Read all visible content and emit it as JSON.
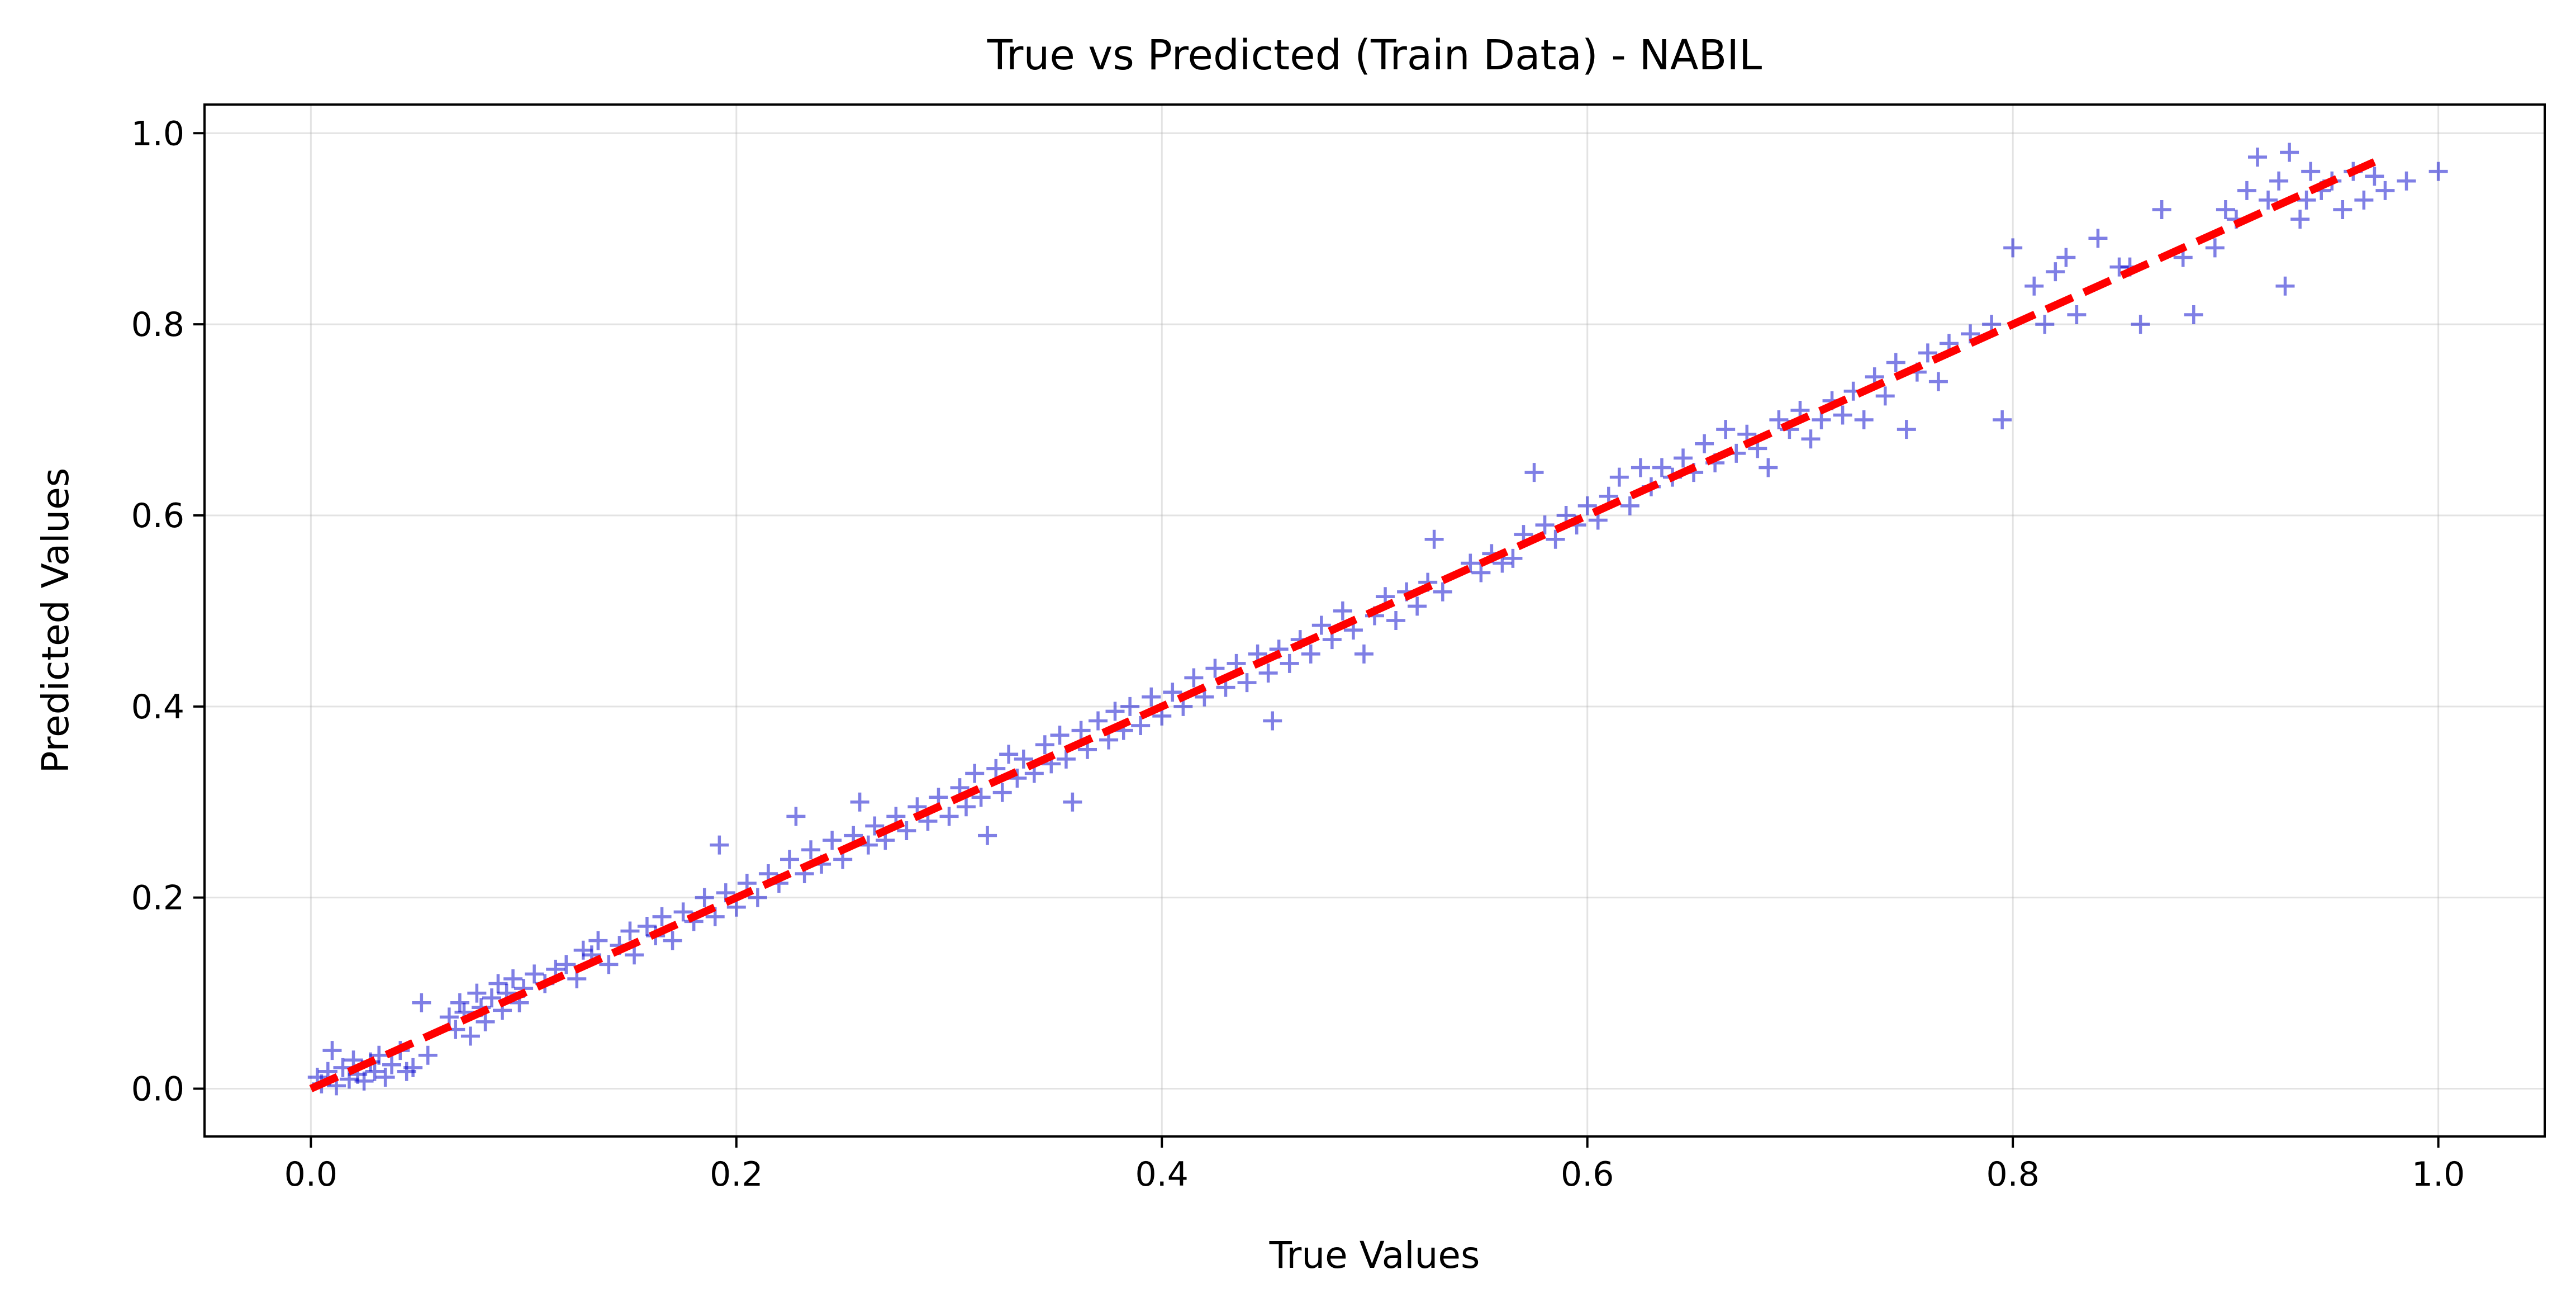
{
  "chart_data": {
    "type": "scatter",
    "title": "True vs Predicted (Train Data) - NABIL",
    "xlabel": "True Values",
    "ylabel": "Predicted Values",
    "xlim": [
      -0.05,
      1.05
    ],
    "ylim": [
      -0.05,
      1.03
    ],
    "x_ticks": [
      0.0,
      0.2,
      0.4,
      0.6,
      0.8,
      1.0
    ],
    "y_ticks": [
      0.0,
      0.2,
      0.4,
      0.6,
      0.8,
      1.0
    ],
    "x_tick_labels": [
      "0.0",
      "0.2",
      "0.4",
      "0.6",
      "0.8",
      "1.0"
    ],
    "y_tick_labels": [
      "0.0",
      "0.2",
      "0.4",
      "0.6",
      "0.8",
      "1.0"
    ],
    "grid": true,
    "marker": "+",
    "point_color": "#0000cc",
    "point_alpha": 0.5,
    "reference_line": {
      "x": [
        0.0,
        0.97
      ],
      "y": [
        0.0,
        0.97
      ],
      "color": "#ff0000",
      "style": "dashed"
    },
    "points": [
      [
        0.005,
        0.005
      ],
      [
        0.008,
        0.018
      ],
      [
        0.012,
        0.003
      ],
      [
        0.015,
        0.022
      ],
      [
        0.018,
        0.01
      ],
      [
        0.02,
        0.03
      ],
      [
        0.022,
        0.015
      ],
      [
        0.025,
        0.008
      ],
      [
        0.028,
        0.028
      ],
      [
        0.03,
        0.018
      ],
      [
        0.032,
        0.035
      ],
      [
        0.035,
        0.012
      ],
      [
        0.038,
        0.025
      ],
      [
        0.042,
        0.04
      ],
      [
        0.045,
        0.018
      ],
      [
        0.048,
        0.022
      ],
      [
        0.052,
        0.09
      ],
      [
        0.055,
        0.035
      ],
      [
        0.01,
        0.04
      ],
      [
        0.003,
        0.012
      ],
      [
        0.065,
        0.075
      ],
      [
        0.068,
        0.062
      ],
      [
        0.07,
        0.09
      ],
      [
        0.072,
        0.08
      ],
      [
        0.075,
        0.055
      ],
      [
        0.078,
        0.1
      ],
      [
        0.08,
        0.085
      ],
      [
        0.082,
        0.07
      ],
      [
        0.085,
        0.095
      ],
      [
        0.088,
        0.11
      ],
      [
        0.09,
        0.082
      ],
      [
        0.092,
        0.1
      ],
      [
        0.095,
        0.115
      ],
      [
        0.098,
        0.09
      ],
      [
        0.1,
        0.105
      ],
      [
        0.105,
        0.12
      ],
      [
        0.11,
        0.11
      ],
      [
        0.115,
        0.125
      ],
      [
        0.12,
        0.13
      ],
      [
        0.125,
        0.115
      ],
      [
        0.128,
        0.145
      ],
      [
        0.132,
        0.14
      ],
      [
        0.135,
        0.155
      ],
      [
        0.14,
        0.13
      ],
      [
        0.145,
        0.15
      ],
      [
        0.15,
        0.165
      ],
      [
        0.152,
        0.14
      ],
      [
        0.158,
        0.17
      ],
      [
        0.162,
        0.16
      ],
      [
        0.165,
        0.18
      ],
      [
        0.17,
        0.155
      ],
      [
        0.175,
        0.185
      ],
      [
        0.18,
        0.175
      ],
      [
        0.185,
        0.2
      ],
      [
        0.19,
        0.18
      ],
      [
        0.192,
        0.255
      ],
      [
        0.195,
        0.205
      ],
      [
        0.2,
        0.19
      ],
      [
        0.205,
        0.215
      ],
      [
        0.21,
        0.2
      ],
      [
        0.215,
        0.225
      ],
      [
        0.22,
        0.215
      ],
      [
        0.225,
        0.24
      ],
      [
        0.228,
        0.285
      ],
      [
        0.232,
        0.225
      ],
      [
        0.235,
        0.25
      ],
      [
        0.24,
        0.235
      ],
      [
        0.245,
        0.26
      ],
      [
        0.25,
        0.24
      ],
      [
        0.255,
        0.265
      ],
      [
        0.258,
        0.3
      ],
      [
        0.262,
        0.255
      ],
      [
        0.265,
        0.275
      ],
      [
        0.27,
        0.26
      ],
      [
        0.275,
        0.285
      ],
      [
        0.28,
        0.27
      ],
      [
        0.285,
        0.295
      ],
      [
        0.29,
        0.28
      ],
      [
        0.295,
        0.305
      ],
      [
        0.3,
        0.285
      ],
      [
        0.305,
        0.315
      ],
      [
        0.308,
        0.295
      ],
      [
        0.312,
        0.33
      ],
      [
        0.315,
        0.305
      ],
      [
        0.318,
        0.265
      ],
      [
        0.322,
        0.335
      ],
      [
        0.325,
        0.31
      ],
      [
        0.328,
        0.35
      ],
      [
        0.332,
        0.325
      ],
      [
        0.335,
        0.345
      ],
      [
        0.34,
        0.33
      ],
      [
        0.345,
        0.36
      ],
      [
        0.348,
        0.34
      ],
      [
        0.352,
        0.37
      ],
      [
        0.355,
        0.345
      ],
      [
        0.358,
        0.3
      ],
      [
        0.362,
        0.375
      ],
      [
        0.365,
        0.355
      ],
      [
        0.37,
        0.385
      ],
      [
        0.375,
        0.365
      ],
      [
        0.378,
        0.395
      ],
      [
        0.382,
        0.375
      ],
      [
        0.385,
        0.4
      ],
      [
        0.39,
        0.38
      ],
      [
        0.395,
        0.41
      ],
      [
        0.4,
        0.39
      ],
      [
        0.405,
        0.415
      ],
      [
        0.41,
        0.4
      ],
      [
        0.415,
        0.43
      ],
      [
        0.42,
        0.41
      ],
      [
        0.425,
        0.44
      ],
      [
        0.43,
        0.42
      ],
      [
        0.435,
        0.445
      ],
      [
        0.44,
        0.425
      ],
      [
        0.445,
        0.455
      ],
      [
        0.45,
        0.435
      ],
      [
        0.452,
        0.385
      ],
      [
        0.455,
        0.46
      ],
      [
        0.46,
        0.445
      ],
      [
        0.465,
        0.47
      ],
      [
        0.47,
        0.455
      ],
      [
        0.475,
        0.485
      ],
      [
        0.48,
        0.47
      ],
      [
        0.485,
        0.5
      ],
      [
        0.49,
        0.48
      ],
      [
        0.495,
        0.455
      ],
      [
        0.5,
        0.495
      ],
      [
        0.505,
        0.515
      ],
      [
        0.51,
        0.49
      ],
      [
        0.515,
        0.52
      ],
      [
        0.52,
        0.505
      ],
      [
        0.525,
        0.53
      ],
      [
        0.528,
        0.575
      ],
      [
        0.532,
        0.52
      ],
      [
        0.545,
        0.55
      ],
      [
        0.55,
        0.54
      ],
      [
        0.555,
        0.56
      ],
      [
        0.56,
        0.55
      ],
      [
        0.565,
        0.555
      ],
      [
        0.57,
        0.58
      ],
      [
        0.575,
        0.645
      ],
      [
        0.58,
        0.59
      ],
      [
        0.585,
        0.575
      ],
      [
        0.59,
        0.6
      ],
      [
        0.595,
        0.59
      ],
      [
        0.6,
        0.61
      ],
      [
        0.605,
        0.595
      ],
      [
        0.61,
        0.62
      ],
      [
        0.615,
        0.64
      ],
      [
        0.62,
        0.61
      ],
      [
        0.625,
        0.65
      ],
      [
        0.63,
        0.63
      ],
      [
        0.635,
        0.65
      ],
      [
        0.64,
        0.64
      ],
      [
        0.645,
        0.66
      ],
      [
        0.65,
        0.645
      ],
      [
        0.655,
        0.675
      ],
      [
        0.66,
        0.655
      ],
      [
        0.665,
        0.69
      ],
      [
        0.67,
        0.665
      ],
      [
        0.675,
        0.685
      ],
      [
        0.68,
        0.67
      ],
      [
        0.685,
        0.65
      ],
      [
        0.69,
        0.7
      ],
      [
        0.695,
        0.69
      ],
      [
        0.7,
        0.71
      ],
      [
        0.705,
        0.68
      ],
      [
        0.71,
        0.7
      ],
      [
        0.715,
        0.72
      ],
      [
        0.72,
        0.705
      ],
      [
        0.725,
        0.73
      ],
      [
        0.73,
        0.7
      ],
      [
        0.735,
        0.745
      ],
      [
        0.74,
        0.725
      ],
      [
        0.745,
        0.76
      ],
      [
        0.75,
        0.69
      ],
      [
        0.755,
        0.75
      ],
      [
        0.76,
        0.77
      ],
      [
        0.765,
        0.74
      ],
      [
        0.77,
        0.78
      ],
      [
        0.78,
        0.79
      ],
      [
        0.79,
        0.8
      ],
      [
        0.795,
        0.7
      ],
      [
        0.8,
        0.88
      ],
      [
        0.81,
        0.84
      ],
      [
        0.815,
        0.8
      ],
      [
        0.82,
        0.855
      ],
      [
        0.825,
        0.87
      ],
      [
        0.83,
        0.81
      ],
      [
        0.84,
        0.89
      ],
      [
        0.85,
        0.86
      ],
      [
        0.855,
        0.86
      ],
      [
        0.86,
        0.8
      ],
      [
        0.87,
        0.92
      ],
      [
        0.88,
        0.87
      ],
      [
        0.885,
        0.81
      ],
      [
        0.895,
        0.88
      ],
      [
        0.9,
        0.92
      ],
      [
        0.905,
        0.91
      ],
      [
        0.91,
        0.94
      ],
      [
        0.915,
        0.975
      ],
      [
        0.92,
        0.93
      ],
      [
        0.925,
        0.95
      ],
      [
        0.928,
        0.84
      ],
      [
        0.93,
        0.98
      ],
      [
        0.935,
        0.91
      ],
      [
        0.938,
        0.93
      ],
      [
        0.94,
        0.96
      ],
      [
        0.945,
        0.94
      ],
      [
        0.95,
        0.95
      ],
      [
        0.955,
        0.92
      ],
      [
        0.96,
        0.96
      ],
      [
        0.965,
        0.93
      ],
      [
        0.97,
        0.955
      ],
      [
        0.975,
        0.94
      ],
      [
        0.985,
        0.95
      ],
      [
        1.0,
        0.96
      ]
    ]
  }
}
